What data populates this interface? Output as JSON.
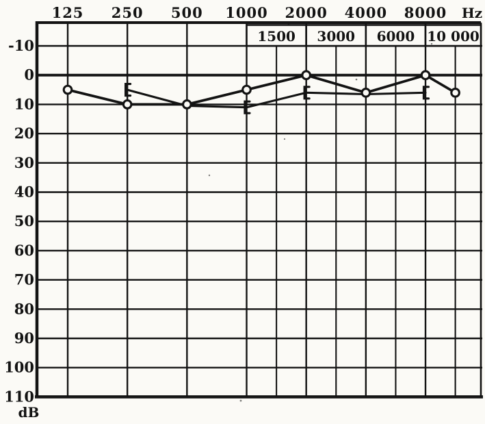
{
  "page": {
    "background": "#fbfaf6",
    "ink": "#131313"
  },
  "chart_data": {
    "type": "line",
    "description": "Audiogram grid: hearing level in dB versus frequency in Hz, two overlaid threshold curves",
    "x_axis": {
      "unit_label": "Hz",
      "top_tick_labels": [
        "125",
        "250",
        "500",
        "1000",
        "2000",
        "4000",
        "8000"
      ],
      "top_tick_freqs": [
        125,
        250,
        500,
        1000,
        2000,
        4000,
        8000
      ],
      "inset_boxes": [
        {
          "label": "1500",
          "from": 1000,
          "to": 2000
        },
        {
          "label": "3000",
          "from": 2000,
          "to": 4000
        },
        {
          "label": "6000",
          "from": 4000,
          "to": 8000
        },
        {
          "label": "10 000",
          "from": 8000,
          "to": "right-edge"
        }
      ],
      "half_column_freqs": [
        1500,
        3000,
        6000,
        10000
      ]
    },
    "y_axis": {
      "unit_label": "dB",
      "min": -10,
      "max": 110,
      "step": 10,
      "tick_labels": [
        "-10",
        "0",
        "10",
        "20",
        "30",
        "40",
        "50",
        "60",
        "70",
        "80",
        "90",
        "100",
        "110"
      ],
      "tick_values": [
        -10,
        0,
        10,
        20,
        30,
        40,
        50,
        60,
        70,
        80,
        90,
        100,
        110
      ]
    },
    "grid": true,
    "legend": "none",
    "series": [
      {
        "name": "circle-marker-curve",
        "marker": "circle",
        "points": [
          {
            "f": 125,
            "db": 5,
            "m": true
          },
          {
            "f": 250,
            "db": 10,
            "m": true
          },
          {
            "f": 500,
            "db": 10,
            "m": true
          },
          {
            "f": 1000,
            "db": 5,
            "m": true
          },
          {
            "f": 2000,
            "db": 0,
            "m": true
          },
          {
            "f": 4000,
            "db": 6,
            "m": true
          },
          {
            "f": 8000,
            "db": 0,
            "m": true
          },
          {
            "f": 10000,
            "db": 6,
            "m": true
          }
        ]
      },
      {
        "name": "bracket-marker-curve",
        "marker": "left-bracket",
        "points": [
          {
            "f": 250,
            "db": 5,
            "m": true
          },
          {
            "f": 500,
            "db": 10.5,
            "m": false
          },
          {
            "f": 1000,
            "db": 11,
            "m": true
          },
          {
            "f": 2000,
            "db": 6,
            "m": true
          },
          {
            "f": 4000,
            "db": 6.5,
            "m": false
          },
          {
            "f": 8000,
            "db": 6,
            "m": true
          }
        ]
      }
    ]
  }
}
